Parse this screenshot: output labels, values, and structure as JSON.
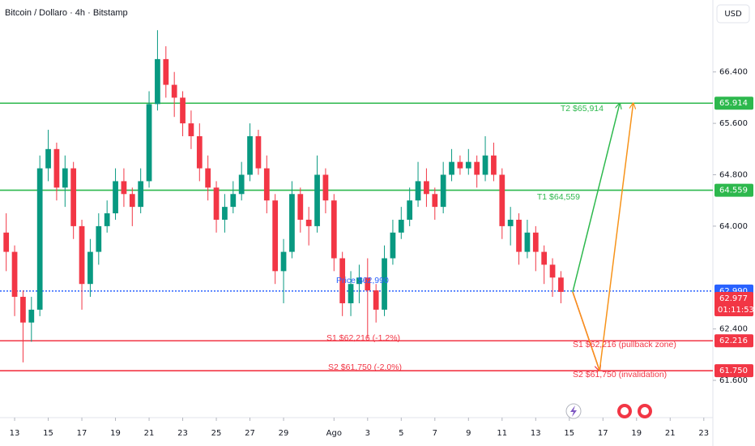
{
  "chart_data": {
    "type": "candlestick",
    "title": "Bitcoin / Dollaro · 4h · Bitstamp",
    "currency": "USD",
    "x": [
      -0.5,
      0,
      0.5,
      1,
      1.5,
      2,
      2.5,
      3,
      3.5,
      4,
      4.5,
      5,
      5.5,
      6,
      6.5,
      7,
      7.5,
      8,
      8.5,
      9,
      9.5,
      10,
      10.5,
      11,
      11.5,
      12,
      12.5,
      13,
      13.5,
      14,
      14.5,
      15,
      15.5,
      16,
      16.5,
      17,
      17.5,
      18,
      18.5,
      19,
      19.5,
      20,
      20.5,
      21,
      21.5,
      22,
      22.5,
      23,
      23.5,
      24,
      24.5,
      25,
      25.5,
      26,
      26.5,
      27,
      27.5,
      28,
      28.5,
      29,
      29.5,
      30,
      30.5,
      31,
      31.5,
      32,
      32.5
    ],
    "open": [
      63.9,
      63.6,
      62.9,
      62.5,
      62.7,
      64.9,
      65.2,
      64.6,
      64.9,
      64.0,
      63.1,
      63.6,
      64.0,
      64.2,
      64.7,
      64.5,
      64.3,
      64.7,
      65.9,
      66.6,
      66.2,
      66.0,
      65.6,
      65.4,
      64.9,
      64.6,
      64.1,
      64.3,
      64.5,
      64.8,
      65.4,
      64.9,
      64.4,
      63.3,
      63.6,
      64.5,
      64.1,
      64.0,
      64.8,
      64.4,
      63.5,
      62.8,
      63.1,
      63.2,
      63.0,
      62.7,
      63.5,
      63.9,
      64.1,
      64.4,
      64.7,
      64.5,
      64.3,
      64.8,
      65.0,
      64.9,
      65.0,
      64.8,
      65.1,
      64.8,
      64.0,
      64.1,
      63.6,
      63.9,
      63.6,
      63.4,
      63.2
    ],
    "high": [
      64.2,
      63.7,
      63.0,
      62.9,
      65.1,
      65.5,
      65.3,
      65.1,
      65.0,
      64.1,
      63.8,
      64.2,
      64.4,
      64.9,
      64.9,
      64.6,
      64.9,
      66.1,
      67.05,
      66.8,
      66.4,
      66.1,
      65.8,
      65.6,
      65.1,
      64.7,
      64.5,
      64.7,
      65.0,
      65.6,
      65.5,
      65.1,
      64.5,
      63.8,
      64.7,
      64.6,
      64.3,
      65.1,
      64.9,
      64.5,
      63.6,
      63.3,
      63.4,
      63.5,
      63.1,
      63.7,
      64.1,
      64.3,
      64.6,
      65.0,
      64.9,
      64.6,
      65.0,
      65.2,
      65.1,
      65.2,
      65.1,
      65.4,
      65.3,
      64.9,
      64.3,
      64.2,
      64.1,
      64.0,
      63.7,
      63.5,
      63.3
    ],
    "low": [
      63.3,
      62.6,
      61.88,
      62.2,
      62.6,
      64.7,
      64.4,
      64.3,
      63.8,
      62.7,
      62.9,
      63.4,
      63.9,
      64.1,
      64.3,
      64.0,
      64.2,
      64.6,
      65.8,
      66.0,
      65.7,
      65.4,
      65.2,
      64.7,
      64.4,
      63.9,
      63.9,
      64.2,
      64.4,
      64.7,
      64.8,
      64.2,
      63.1,
      62.8,
      63.5,
      63.9,
      63.7,
      63.9,
      64.2,
      63.3,
      62.6,
      62.6,
      62.8,
      62.25,
      62.5,
      62.6,
      63.4,
      63.8,
      64.0,
      64.3,
      64.3,
      64.1,
      64.2,
      64.7,
      64.8,
      64.8,
      64.6,
      64.7,
      64.7,
      63.8,
      63.7,
      63.4,
      63.5,
      63.3,
      63.1,
      62.9,
      62.8
    ],
    "close": [
      63.6,
      62.9,
      62.5,
      62.7,
      64.9,
      65.2,
      64.6,
      64.9,
      64.0,
      63.1,
      63.6,
      64.0,
      64.2,
      64.7,
      64.5,
      64.3,
      64.7,
      65.9,
      66.6,
      66.2,
      66.0,
      65.6,
      65.4,
      64.9,
      64.6,
      64.1,
      64.3,
      64.5,
      64.8,
      65.4,
      64.9,
      64.4,
      63.3,
      63.6,
      64.5,
      64.1,
      64.0,
      64.8,
      64.4,
      63.5,
      62.8,
      63.1,
      63.2,
      63.0,
      62.7,
      63.5,
      63.9,
      64.1,
      64.4,
      64.7,
      64.5,
      64.3,
      64.8,
      65.0,
      64.9,
      65.0,
      64.8,
      65.1,
      64.8,
      64.0,
      64.1,
      63.6,
      63.9,
      63.6,
      63.4,
      63.2,
      62.977
    ],
    "up_color": "#089981",
    "down_color": "#f23645",
    "xlim": [
      -0.87,
      41.54
    ],
    "ylim": [
      61.02,
      67.52
    ],
    "xticks": [
      {
        "value": 0,
        "label": "13"
      },
      {
        "value": 2,
        "label": "15"
      },
      {
        "value": 4,
        "label": "17"
      },
      {
        "value": 6,
        "label": "19"
      },
      {
        "value": 8,
        "label": "21"
      },
      {
        "value": 10,
        "label": "23"
      },
      {
        "value": 12,
        "label": "25"
      },
      {
        "value": 14,
        "label": "27"
      },
      {
        "value": 16,
        "label": "29"
      },
      {
        "value": 19,
        "label": "Ago"
      },
      {
        "value": 21,
        "label": "3"
      },
      {
        "value": 23,
        "label": "5"
      },
      {
        "value": 25,
        "label": "7"
      },
      {
        "value": 27,
        "label": "9"
      },
      {
        "value": 29,
        "label": "11"
      },
      {
        "value": 31,
        "label": "13"
      },
      {
        "value": 33,
        "label": "15"
      },
      {
        "value": 35,
        "label": "17"
      },
      {
        "value": 37,
        "label": "19"
      },
      {
        "value": 39,
        "label": "21"
      },
      {
        "value": 41,
        "label": "23"
      }
    ],
    "yticks": [
      {
        "value": 66.4,
        "label": "66.400"
      },
      {
        "value": 65.6,
        "label": "65.600"
      },
      {
        "value": 64.8,
        "label": "64.800"
      },
      {
        "value": 64,
        "label": "64.000"
      },
      {
        "value": 62.4,
        "label": "62.400"
      },
      {
        "value": 61.6,
        "label": "61.600"
      }
    ],
    "levels": [
      {
        "value": 65.914,
        "label": "65.914",
        "color": "#2db84d",
        "dotted": false
      },
      {
        "value": 64.559,
        "label": "64.559",
        "color": "#2db84d",
        "dotted": false
      },
      {
        "value": 62.99,
        "label": "62.990",
        "color": "#2962ff",
        "dotted": true
      },
      {
        "value": 62.216,
        "label": "62.216",
        "color": "#f23645",
        "dotted": false
      },
      {
        "value": 61.75,
        "label": "61.750",
        "color": "#f23645",
        "dotted": false
      }
    ],
    "last_price": {
      "value": 62.977,
      "label": "62.977",
      "countdown": "01:11:53",
      "color": "#f23645"
    },
    "annotations": [
      {
        "text": "T2 $65,914",
        "color": "#2db84d"
      },
      {
        "text": "T1 $64,559",
        "color": "#2db84d"
      },
      {
        "text": "Price $62,990",
        "color": "#2962ff"
      },
      {
        "text": "S1 $62,216 (-1.2%)",
        "color": "#f23645"
      },
      {
        "text": "S2 $61,750 (-2.0%)",
        "color": "#f23645"
      },
      {
        "text": "S1 $62,216 (pullback zone)",
        "color": "#f23645"
      },
      {
        "text": "S2 $61,750 (invalidation)",
        "color": "#f23645"
      }
    ],
    "projections": [
      {
        "color": "#2db84d",
        "x": [
          33.2,
          36.0
        ],
        "y": [
          62.977,
          65.914
        ]
      },
      {
        "color": "#f23645",
        "x": [
          33.2,
          34.8
        ],
        "y": [
          62.977,
          61.75
        ]
      },
      {
        "color": "#f7931a",
        "x": [
          33.2,
          34.8,
          36.8
        ],
        "y": [
          62.977,
          61.75,
          65.914
        ]
      }
    ]
  }
}
